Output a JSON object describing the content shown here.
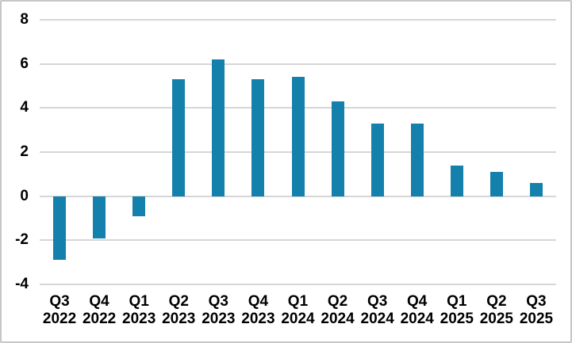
{
  "chart": {
    "background": "#FFFFFF",
    "frame_border_color": "#C6C6C6",
    "gridline_color": "#D6D6D6",
    "bar_color": "#1480AC",
    "text_color": "#000000"
  },
  "chart_data": {
    "type": "bar",
    "title": "",
    "xlabel": "",
    "ylabel": "",
    "categories": [
      "Q3 2022",
      "Q4 2022",
      "Q1 2023",
      "Q2 2023",
      "Q3 2023",
      "Q4 2023",
      "Q1 2024",
      "Q2 2024",
      "Q3 2024",
      "Q4 2024",
      "Q1 2025",
      "Q2 2025",
      "Q3 2025"
    ],
    "values": [
      -2.9,
      -1.9,
      -0.9,
      5.3,
      6.2,
      5.3,
      5.4,
      4.3,
      3.3,
      3.3,
      1.4,
      1.1,
      0.6
    ],
    "ylim": [
      -4,
      8
    ],
    "yticks": [
      8,
      6,
      4,
      2,
      0,
      -2,
      -4
    ],
    "grid": true,
    "legend": "none"
  }
}
